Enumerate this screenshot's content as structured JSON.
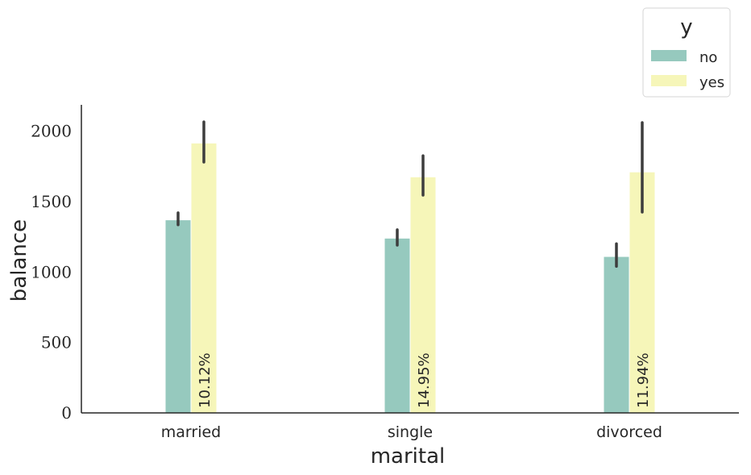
{
  "chart_data": {
    "type": "bar",
    "title": "",
    "xlabel": "marital",
    "ylabel": "balance",
    "categories": [
      "married",
      "single",
      "divorced"
    ],
    "ylim": [
      0,
      2150
    ],
    "yticks": [
      0,
      500,
      1000,
      1500,
      2000
    ],
    "series": [
      {
        "name": "no",
        "color": "#96c9be",
        "values": [
          1370,
          1240,
          1110
        ],
        "ci": [
          [
            1335,
            1420
          ],
          [
            1190,
            1300
          ],
          [
            1040,
            1200
          ]
        ]
      },
      {
        "name": "yes",
        "color": "#f6f6b9",
        "values": [
          1915,
          1675,
          1710
        ],
        "ci": [
          [
            1780,
            2065
          ],
          [
            1545,
            1825
          ],
          [
            1425,
            2060
          ]
        ]
      }
    ],
    "annotations": [
      "10.12%",
      "14.95%",
      "11.94%"
    ],
    "legend": {
      "title": "y",
      "position": "top-right"
    },
    "grid": false
  }
}
